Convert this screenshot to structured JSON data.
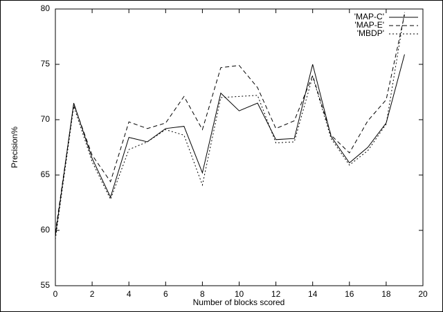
{
  "chart_data": {
    "type": "line",
    "xlabel": "Number of blocks scored",
    "ylabel": "Precision%",
    "x": [
      0,
      1,
      2,
      3,
      4,
      5,
      6,
      7,
      8,
      9,
      10,
      11,
      12,
      13,
      14,
      15,
      16,
      17,
      18,
      19
    ],
    "series": [
      {
        "name": "'MAP-C'",
        "color": "#000000",
        "dash": "none",
        "values": [
          59.5,
          71.5,
          66.5,
          63.0,
          68.4,
          68.0,
          69.2,
          69.4,
          65.2,
          72.4,
          70.8,
          71.5,
          68.2,
          68.3,
          75.0,
          68.5,
          66.1,
          67.5,
          69.7,
          75.9
        ]
      },
      {
        "name": "'MAP-E'",
        "color": "#000000",
        "dash": "6,4",
        "values": [
          59.8,
          71.4,
          66.8,
          64.4,
          69.8,
          69.2,
          69.7,
          72.1,
          69.1,
          74.7,
          74.9,
          72.9,
          69.2,
          69.9,
          74.0,
          68.6,
          67.0,
          69.9,
          71.8,
          79.5
        ]
      },
      {
        "name": "'MBDP'",
        "color": "#000000",
        "dash": "2,3",
        "values": [
          59.2,
          71.2,
          66.2,
          62.8,
          67.3,
          68.0,
          69.1,
          68.6,
          64.1,
          72.0,
          72.1,
          72.2,
          67.9,
          68.0,
          73.9,
          68.3,
          65.9,
          67.2,
          69.6,
          79.7
        ]
      }
    ],
    "xlim": [
      0,
      20
    ],
    "xticks": [
      0,
      2,
      4,
      6,
      8,
      10,
      12,
      14,
      16,
      18,
      20
    ],
    "ylim": [
      55,
      80
    ],
    "yticks": [
      55,
      60,
      65,
      70,
      75,
      80
    ],
    "grid": false,
    "legend": "top-right"
  }
}
